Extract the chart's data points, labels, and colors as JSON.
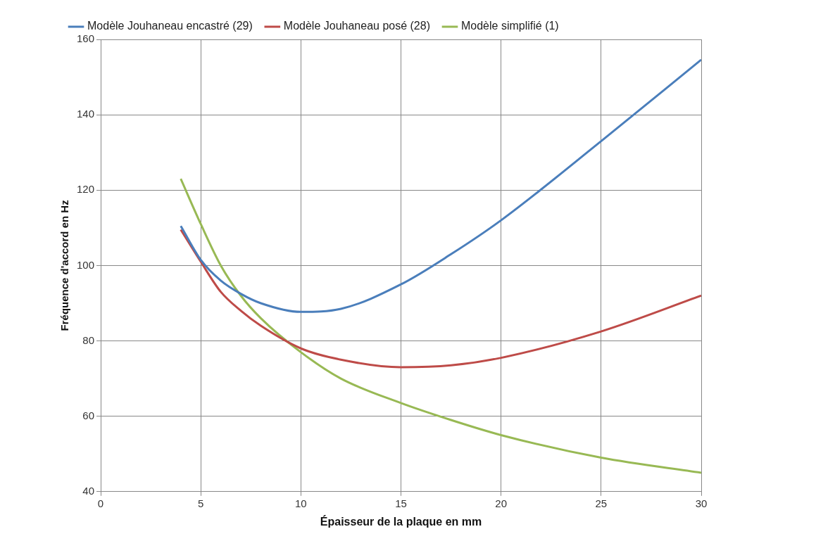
{
  "chart_data": {
    "type": "line",
    "xlabel": "Épaisseur de la plaque en mm",
    "ylabel": "Fréquence d'accord en Hz",
    "xlim": [
      0,
      30
    ],
    "xticks": [
      0,
      5,
      10,
      15,
      20,
      25,
      30
    ],
    "ylim": [
      40,
      160
    ],
    "yticks": [
      40,
      60,
      80,
      100,
      120,
      140,
      160
    ],
    "grid": true,
    "legend": "top",
    "marker": "none",
    "line_style": "solid",
    "series": [
      {
        "name": "Modèle Jouhaneau encastré (29)",
        "color": "#4a7ebb",
        "x": [
          4,
          5,
          6,
          7,
          8,
          10,
          12,
          15,
          17.5,
          20,
          25,
          30
        ],
        "values": [
          110.5,
          101.5,
          96,
          92.5,
          90,
          87.7,
          88.5,
          95,
          103,
          112,
          133,
          154.6
        ]
      },
      {
        "name": "Modèle Jouhaneau posé (28)",
        "color": "#be4b48",
        "x": [
          4,
          5,
          6,
          7,
          8,
          10,
          12,
          15,
          17.5,
          20,
          25,
          30
        ],
        "values": [
          109.5,
          101,
          93,
          88,
          84,
          78,
          75,
          73,
          73.5,
          75.5,
          82.5,
          92
        ]
      },
      {
        "name": "Modèle simplifié (1)",
        "color": "#98b954",
        "x": [
          4,
          5,
          6,
          7,
          8,
          10,
          12,
          15,
          17.5,
          20,
          25,
          30
        ],
        "values": [
          123,
          111,
          100,
          92,
          86,
          77,
          70,
          63.5,
          59,
          55,
          49,
          45
        ]
      }
    ]
  }
}
